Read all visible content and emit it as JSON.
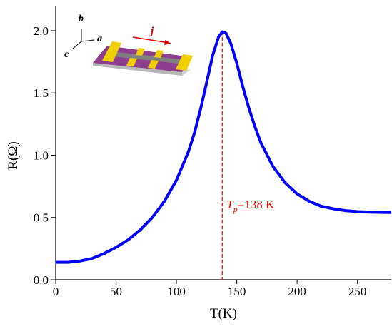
{
  "chart_data": {
    "type": "line",
    "xlabel": "T(K)",
    "ylabel": "R(Ω)",
    "x": [
      0,
      10,
      20,
      30,
      40,
      50,
      60,
      70,
      80,
      90,
      100,
      110,
      115,
      120,
      125,
      130,
      135,
      138,
      141,
      145,
      150,
      155,
      160,
      165,
      170,
      180,
      190,
      200,
      210,
      220,
      230,
      240,
      250,
      260,
      270,
      278
    ],
    "series": [
      {
        "color": "#0000ff",
        "values": [
          0.14,
          0.14,
          0.15,
          0.17,
          0.21,
          0.26,
          0.32,
          0.4,
          0.5,
          0.63,
          0.8,
          1.03,
          1.18,
          1.37,
          1.58,
          1.8,
          1.95,
          1.99,
          1.98,
          1.9,
          1.74,
          1.55,
          1.38,
          1.23,
          1.1,
          0.91,
          0.78,
          0.69,
          0.63,
          0.59,
          0.57,
          0.555,
          0.547,
          0.543,
          0.541,
          0.54
        ]
      }
    ],
    "xlim": [
      0,
      278
    ],
    "xticks": [
      0,
      50,
      100,
      150,
      200,
      250
    ],
    "ylim": [
      0,
      2.2
    ],
    "yticks": [
      {
        "value": 0,
        "label": "0.0"
      },
      0.5,
      {
        "value": 1,
        "label": "1.0"
      },
      1.5,
      {
        "value": 2,
        "label": "2.0"
      }
    ],
    "marker_line": {
      "x": 138,
      "color": "#ff0000",
      "symbol": "T",
      "subscript": "p",
      "text": "=138 K"
    },
    "inset_labels": {
      "b": "b",
      "a": "a",
      "c": "c",
      "j": "j"
    }
  }
}
